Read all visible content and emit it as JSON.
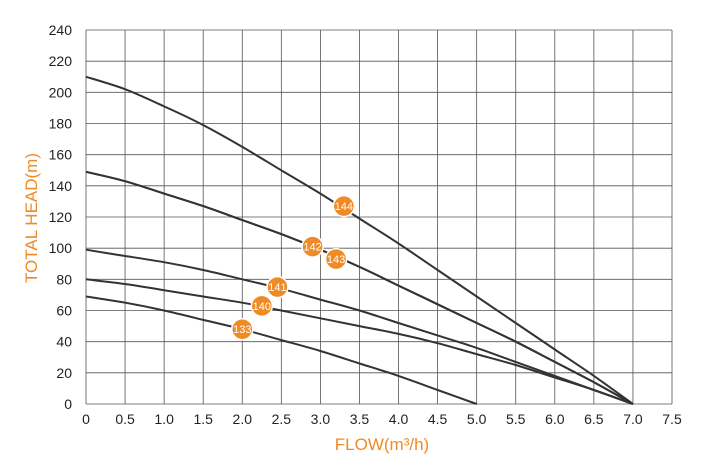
{
  "chart_data": {
    "type": "line",
    "title": "",
    "xlabel": "FLOW(m³/h)",
    "ylabel": "TOTAL HEAD(m)",
    "xlim": [
      0,
      7.5
    ],
    "ylim": [
      0,
      240
    ],
    "x_ticks": [
      0,
      0.5,
      1.0,
      1.5,
      2.0,
      2.5,
      3.0,
      3.5,
      4.0,
      4.5,
      5.0,
      5.5,
      6.0,
      6.5,
      7.0,
      7.5
    ],
    "x_tick_labels": [
      "0",
      "0.5",
      "1.0",
      "1.5",
      "2.0",
      "2.5",
      "3.0",
      "3.5",
      "4.0",
      "4.5",
      "5.0",
      "5.5",
      "6.0",
      "6.5",
      "7.0",
      "7.5"
    ],
    "y_ticks": [
      0,
      20,
      40,
      60,
      80,
      100,
      120,
      140,
      160,
      180,
      200,
      220,
      240
    ],
    "y_tick_labels": [
      "0",
      "20",
      "40",
      "60",
      "80",
      "100",
      "120",
      "140",
      "160",
      "180",
      "200",
      "220",
      "240"
    ],
    "grid": true,
    "line_color": "#333333",
    "badge_color": "#f08a24",
    "series": [
      {
        "name": "144",
        "label_at": [
          3.3,
          127
        ],
        "x": [
          0,
          0.5,
          1.0,
          1.5,
          2.0,
          2.5,
          3.0,
          3.5,
          4.0,
          4.5,
          5.0,
          5.5,
          6.0,
          6.5,
          7.0
        ],
        "y": [
          210,
          202,
          191,
          179,
          165,
          150,
          135,
          119,
          103,
          86,
          69,
          52,
          35,
          18,
          0
        ]
      },
      {
        "name": "142",
        "label_at": [
          2.9,
          101
        ],
        "x": [
          0,
          0.5,
          1.0,
          1.5,
          2.0,
          2.5,
          3.0,
          3.5,
          4.0,
          4.5,
          5.0,
          5.5,
          6.0,
          6.5,
          7.0
        ],
        "y": [
          149,
          143,
          135,
          127,
          118,
          109,
          99,
          88,
          76,
          64,
          52,
          40,
          27,
          14,
          0
        ]
      },
      {
        "name": "143",
        "label_at": [
          3.2,
          93
        ],
        "x": [
          0,
          0.5,
          1.0,
          1.5,
          2.0,
          2.5,
          3.0,
          3.5,
          4.0,
          4.5,
          5.0,
          5.5,
          6.0,
          6.5,
          7.0
        ],
        "y": [
          149,
          143,
          135,
          127,
          118,
          109,
          99,
          88,
          76,
          64,
          52,
          40,
          27,
          14,
          0
        ]
      },
      {
        "name": "141",
        "label_at": [
          2.45,
          75
        ],
        "x": [
          0,
          0.5,
          1.0,
          1.5,
          2.0,
          2.5,
          3.0,
          3.5,
          4.0,
          4.5,
          5.0,
          5.5,
          6.0,
          6.5,
          7.0
        ],
        "y": [
          99,
          95,
          91,
          86,
          80,
          74,
          67,
          60,
          52,
          44,
          36,
          27,
          18,
          9,
          0
        ]
      },
      {
        "name": "140",
        "label_at": [
          2.25,
          63
        ],
        "x": [
          0,
          0.5,
          1.0,
          1.5,
          2.0,
          2.5,
          3.0,
          3.5,
          4.0,
          4.5,
          5.0,
          5.5,
          6.0,
          6.5,
          7.0
        ],
        "y": [
          80,
          77,
          73,
          69,
          65,
          60,
          55,
          50,
          45,
          39,
          32,
          25,
          17,
          9,
          0
        ]
      },
      {
        "name": "133",
        "label_at": [
          2.0,
          48
        ],
        "x": [
          0,
          0.5,
          1.0,
          1.5,
          2.0,
          2.5,
          3.0,
          3.5,
          4.0,
          4.5,
          5.0
        ],
        "y": [
          69,
          65,
          60,
          54,
          48,
          41,
          34,
          26,
          18,
          9,
          0
        ]
      }
    ]
  }
}
